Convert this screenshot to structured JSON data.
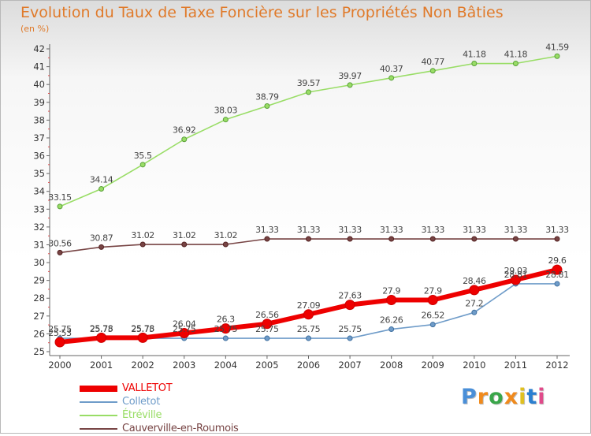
{
  "chart_data": {
    "type": "line",
    "title": "Evolution du Taux de Taxe Foncière sur les Propriétés Non Bâties",
    "ylabel": "(en %)",
    "xlabel": "",
    "ylim": [
      25,
      42
    ],
    "yticks": [
      25,
      26,
      27,
      28,
      29,
      30,
      31,
      32,
      33,
      34,
      35,
      36,
      37,
      38,
      39,
      40,
      41,
      42
    ],
    "categories": [
      "2000",
      "2001",
      "2002",
      "2003",
      "2004",
      "2005",
      "2006",
      "2007",
      "2008",
      "2009",
      "2010",
      "2011",
      "2012"
    ],
    "grid": false,
    "legend": "bottom-left",
    "series": [
      {
        "name": "VALLETOT",
        "color": "#ee0000",
        "values": [
          25.53,
          25.78,
          25.78,
          26.04,
          26.3,
          26.56,
          27.09,
          27.63,
          27.9,
          27.9,
          28.46,
          29.03,
          29.6
        ],
        "labels": [
          "25.53",
          "25.78",
          "25.78",
          "26.04",
          "26.3",
          "26.56",
          "27.09",
          "27.63",
          "27.9",
          "27.9",
          "28.46",
          "29.03",
          "29.6"
        ]
      },
      {
        "name": "Colletot",
        "color": "#6f9cc9",
        "values": [
          25.75,
          25.75,
          25.75,
          25.75,
          25.75,
          25.75,
          25.75,
          25.75,
          26.26,
          26.52,
          27.2,
          28.81,
          28.81
        ],
        "labels": [
          "25.75",
          "25.75",
          "25.75",
          "25.75",
          "25.75",
          "25.75",
          "25.75",
          "25.75",
          "26.26",
          "26.52",
          "27.2",
          "28.81",
          "28.81"
        ]
      },
      {
        "name": "Étréville",
        "color": "#99dd66",
        "values": [
          33.15,
          34.14,
          35.5,
          36.92,
          38.03,
          38.79,
          39.57,
          39.97,
          40.37,
          40.77,
          41.18,
          41.18,
          41.59
        ],
        "labels": [
          "33.15",
          "34.14",
          "35.5",
          "36.92",
          "38.03",
          "38.79",
          "39.57",
          "39.97",
          "40.37",
          "40.77",
          "41.18",
          "41.18",
          "41.59"
        ]
      },
      {
        "name": "Cauverville-en-Roumois",
        "color": "#774444",
        "values": [
          30.56,
          30.87,
          31.02,
          31.02,
          31.02,
          31.33,
          31.33,
          31.33,
          31.33,
          31.33,
          31.33,
          31.33,
          31.33
        ],
        "labels": [
          "30.56",
          "30.87",
          "31.02",
          "31.02",
          "31.02",
          "31.33",
          "31.33",
          "31.33",
          "31.33",
          "31.33",
          "31.33",
          "31.33",
          "31.33"
        ]
      }
    ]
  },
  "logo": {
    "text": "Proxiti",
    "colors": [
      "#4a8fd8",
      "#f08a1c",
      "#3aa64a",
      "#f08a1c",
      "#e0c020",
      "#2a7fd0",
      "#e04a8a"
    ]
  }
}
